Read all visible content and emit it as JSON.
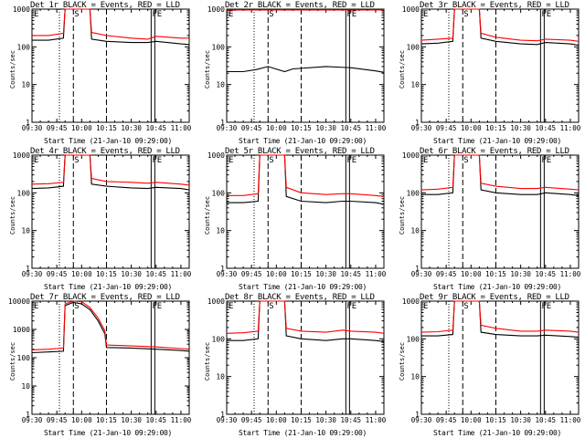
{
  "x_axis_label": "Start Time (21-Jan-10 09:29:00)",
  "y_axis_label": "Counts/sec",
  "event_markers": [
    "E",
    "S",
    "FE"
  ],
  "colors": {
    "events": "#000000",
    "lld": "#ff0000"
  },
  "panels": [
    {
      "title": "Det 1r BLACK = Events, RED = LLD"
    },
    {
      "title": "Det 2r BLACK = Events, RED = LLD"
    },
    {
      "title": "Det 3r BLACK = Events, RED = LLD"
    },
    {
      "title": "Det 4r BLACK = Events, RED = LLD"
    },
    {
      "title": "Det 5r BLACK = Events, RED = LLD"
    },
    {
      "title": "Det 6r BLACK = Events, RED = LLD"
    },
    {
      "title": "Det 7r BLACK = Events, RED = LLD"
    },
    {
      "title": "Det 8r BLACK = Events, RED = LLD"
    },
    {
      "title": "Det 9r BLACK = Events, RED = LLD"
    }
  ],
  "chart_data": [
    {
      "type": "line",
      "title": "Det 1r BLACK = Events, RED = LLD",
      "xlabel": "Start Time (21-Jan-10 09:29:00)",
      "ylabel": "Counts/sec",
      "xlim": [
        "09:30",
        "11:05"
      ],
      "ylim": [
        1,
        1000
      ],
      "yscale": "log",
      "x_tick_labels": [
        "09:30",
        "09:45",
        "10:00",
        "10:15",
        "10:30",
        "10:45",
        "11:00"
      ],
      "y_tick_labels": [
        "1",
        "10",
        "100",
        "1000"
      ],
      "markers": {
        "E": "09:30",
        "S": "09:55",
        "FE": "10:42"
      },
      "x": [
        "09:30",
        "09:40",
        "09:49",
        "09:50",
        "09:55",
        "10:05",
        "10:06",
        "10:15",
        "10:30",
        "10:40",
        "10:45",
        "11:00",
        "11:05"
      ],
      "series": [
        {
          "name": "Events",
          "values": [
            150,
            150,
            170,
            1000,
            1000,
            1000,
            160,
            140,
            130,
            130,
            140,
            120,
            115
          ]
        },
        {
          "name": "LLD",
          "values": [
            200,
            200,
            230,
            1000,
            1000,
            1000,
            240,
            200,
            170,
            160,
            190,
            170,
            170
          ]
        }
      ]
    },
    {
      "type": "line",
      "title": "Det 2r BLACK = Events, RED = LLD",
      "xlabel": "Start Time (21-Jan-10 09:29:00)",
      "ylabel": "Counts/sec",
      "xlim": [
        "09:30",
        "11:05"
      ],
      "ylim": [
        1,
        1000
      ],
      "yscale": "log",
      "x_tick_labels": [
        "09:30",
        "09:45",
        "10:00",
        "10:15",
        "10:30",
        "10:45",
        "11:00"
      ],
      "y_tick_labels": [
        "1",
        "10",
        "100",
        "1000"
      ],
      "markers": {
        "E": "09:30",
        "S": "09:55",
        "FE": "10:42"
      },
      "x": [
        "09:30",
        "09:40",
        "09:48",
        "09:55",
        "10:05",
        "10:10",
        "10:30",
        "10:45",
        "11:00",
        "11:05"
      ],
      "series": [
        {
          "name": "Events",
          "values": [
            22,
            22,
            25,
            30,
            22,
            26,
            30,
            28,
            23,
            21
          ]
        },
        {
          "name": "LLD",
          "values": [
            950,
            950,
            950,
            950,
            950,
            950,
            950,
            950,
            950,
            950
          ]
        }
      ]
    },
    {
      "type": "line",
      "title": "Det 3r BLACK = Events, RED = LLD",
      "xlabel": "Start Time (21-Jan-10 09:29:00)",
      "ylabel": "Counts/sec",
      "xlim": [
        "09:30",
        "11:05"
      ],
      "ylim": [
        1,
        1000
      ],
      "yscale": "log",
      "x_tick_labels": [
        "09:30",
        "09:45",
        "10:00",
        "10:15",
        "10:30",
        "10:45",
        "11:00"
      ],
      "y_tick_labels": [
        "1",
        "10",
        "100",
        "1000"
      ],
      "markers": {
        "E": "09:30",
        "S": "09:55",
        "FE": "10:42"
      },
      "x": [
        "09:30",
        "09:40",
        "09:49",
        "09:50",
        "09:55",
        "10:05",
        "10:06",
        "10:15",
        "10:30",
        "10:40",
        "10:45",
        "11:00",
        "11:05"
      ],
      "series": [
        {
          "name": "Events",
          "values": [
            120,
            125,
            140,
            1000,
            1000,
            1000,
            170,
            140,
            120,
            115,
            130,
            120,
            110
          ]
        },
        {
          "name": "LLD",
          "values": [
            150,
            160,
            170,
            1000,
            1000,
            1000,
            230,
            180,
            150,
            145,
            160,
            150,
            140
          ]
        }
      ]
    },
    {
      "type": "line",
      "title": "Det 4r BLACK = Events, RED = LLD",
      "xlabel": "Start Time (21-Jan-10 09:29:00)",
      "ylabel": "Counts/sec",
      "xlim": [
        "09:30",
        "11:05"
      ],
      "ylim": [
        1,
        1000
      ],
      "yscale": "log",
      "x_tick_labels": [
        "09:30",
        "09:45",
        "10:00",
        "10:15",
        "10:30",
        "10:45",
        "11:00"
      ],
      "y_tick_labels": [
        "1",
        "10",
        "100",
        "1000"
      ],
      "markers": {
        "E": "09:30",
        "S": "09:55",
        "FE": "10:42"
      },
      "x": [
        "09:30",
        "09:40",
        "09:49",
        "09:50",
        "09:55",
        "10:05",
        "10:06",
        "10:15",
        "10:30",
        "10:40",
        "10:45",
        "11:00",
        "11:05"
      ],
      "series": [
        {
          "name": "Events",
          "values": [
            130,
            135,
            150,
            1000,
            1000,
            1000,
            170,
            150,
            135,
            130,
            140,
            130,
            120
          ]
        },
        {
          "name": "LLD",
          "values": [
            170,
            175,
            190,
            1000,
            1000,
            1000,
            240,
            200,
            190,
            180,
            190,
            170,
            160
          ]
        }
      ]
    },
    {
      "type": "line",
      "title": "Det 5r BLACK = Events, RED = LLD",
      "xlabel": "Start Time (21-Jan-10 09:29:00)",
      "ylabel": "Counts/sec",
      "xlim": [
        "09:30",
        "11:05"
      ],
      "ylim": [
        1,
        1000
      ],
      "yscale": "log",
      "x_tick_labels": [
        "09:30",
        "09:45",
        "10:00",
        "10:15",
        "10:30",
        "10:45",
        "11:00"
      ],
      "y_tick_labels": [
        "1",
        "10",
        "100",
        "1000"
      ],
      "markers": {
        "E": "09:30",
        "S": "09:55",
        "FE": "10:42"
      },
      "x": [
        "09:30",
        "09:40",
        "09:49",
        "09:50",
        "09:55",
        "10:05",
        "10:06",
        "10:15",
        "10:30",
        "10:40",
        "10:45",
        "11:00",
        "11:05"
      ],
      "series": [
        {
          "name": "Events",
          "values": [
            55,
            55,
            60,
            1000,
            1000,
            1000,
            80,
            60,
            55,
            60,
            60,
            55,
            50
          ]
        },
        {
          "name": "LLD",
          "values": [
            85,
            85,
            95,
            1000,
            1000,
            1000,
            140,
            100,
            90,
            95,
            95,
            85,
            80
          ]
        }
      ]
    },
    {
      "type": "line",
      "title": "Det 6r BLACK = Events, RED = LLD",
      "xlabel": "Start Time (21-Jan-10 09:29:00)",
      "ylabel": "Counts/sec",
      "xlim": [
        "09:30",
        "11:05"
      ],
      "ylim": [
        1,
        1000
      ],
      "yscale": "log",
      "x_tick_labels": [
        "09:30",
        "09:45",
        "10:00",
        "10:15",
        "10:30",
        "10:45",
        "11:00"
      ],
      "y_tick_labels": [
        "1",
        "10",
        "100",
        "1000"
      ],
      "markers": {
        "E": "09:30",
        "S": "09:55",
        "FE": "10:42"
      },
      "x": [
        "09:30",
        "09:40",
        "09:49",
        "09:50",
        "09:55",
        "10:05",
        "10:06",
        "10:15",
        "10:30",
        "10:40",
        "10:45",
        "11:00",
        "11:05"
      ],
      "series": [
        {
          "name": "Events",
          "values": [
            90,
            90,
            100,
            1000,
            1000,
            1000,
            120,
            100,
            90,
            90,
            100,
            90,
            85
          ]
        },
        {
          "name": "LLD",
          "values": [
            120,
            125,
            140,
            1000,
            1000,
            1000,
            180,
            150,
            130,
            130,
            140,
            125,
            120
          ]
        }
      ]
    },
    {
      "type": "line",
      "title": "Det 7r BLACK = Events, RED = LLD",
      "xlabel": "Start Time (21-Jan-10 09:29:00)",
      "ylabel": "Counts/sec",
      "xlim": [
        "09:30",
        "11:05"
      ],
      "ylim": [
        1,
        10000
      ],
      "yscale": "log",
      "x_tick_labels": [
        "09:30",
        "09:45",
        "10:00",
        "10:15",
        "10:30",
        "10:45",
        "11:00"
      ],
      "y_tick_labels": [
        "1",
        "10",
        "100",
        "1000",
        "10000"
      ],
      "markers": {
        "E": "09:30",
        "S": "09:55",
        "FE": "10:42"
      },
      "x": [
        "09:30",
        "09:40",
        "09:49",
        "09:50",
        "09:55",
        "10:00",
        "10:05",
        "10:10",
        "10:14",
        "10:15",
        "10:30",
        "10:45",
        "11:00",
        "11:05"
      ],
      "series": [
        {
          "name": "Events",
          "values": [
            150,
            160,
            170,
            7000,
            9000,
            8000,
            5000,
            2000,
            700,
            230,
            220,
            200,
            180,
            170
          ]
        },
        {
          "name": "LLD",
          "values": [
            190,
            200,
            220,
            8000,
            10000,
            9500,
            6000,
            2500,
            900,
            280,
            260,
            240,
            210,
            200
          ]
        }
      ]
    },
    {
      "type": "line",
      "title": "Det 8r BLACK = Events, RED = LLD",
      "xlabel": "Start Time (21-Jan-10 09:29:00)",
      "ylabel": "Counts/sec",
      "xlim": [
        "09:30",
        "11:05"
      ],
      "ylim": [
        1,
        1000
      ],
      "yscale": "log",
      "x_tick_labels": [
        "09:30",
        "09:45",
        "10:00",
        "10:15",
        "10:30",
        "10:45",
        "11:00"
      ],
      "y_tick_labels": [
        "1",
        "10",
        "100",
        "1000"
      ],
      "markers": {
        "E": "09:30",
        "S": "09:55",
        "FE": "10:42"
      },
      "x": [
        "09:30",
        "09:40",
        "09:49",
        "09:50",
        "09:55",
        "10:05",
        "10:06",
        "10:15",
        "10:30",
        "10:40",
        "10:45",
        "11:00",
        "11:05"
      ],
      "series": [
        {
          "name": "Events",
          "values": [
            90,
            90,
            100,
            1000,
            1000,
            1000,
            120,
            100,
            90,
            100,
            100,
            90,
            85
          ]
        },
        {
          "name": "LLD",
          "values": [
            140,
            145,
            160,
            1000,
            1000,
            1000,
            190,
            160,
            150,
            170,
            160,
            150,
            140
          ]
        }
      ]
    },
    {
      "type": "line",
      "title": "Det 9r BLACK = Events, RED = LLD",
      "xlabel": "Start Time (21-Jan-10 09:29:00)",
      "ylabel": "Counts/sec",
      "xlim": [
        "09:30",
        "11:05"
      ],
      "ylim": [
        1,
        1000
      ],
      "yscale": "log",
      "x_tick_labels": [
        "09:30",
        "09:45",
        "10:00",
        "10:15",
        "10:30",
        "10:45",
        "11:00"
      ],
      "y_tick_labels": [
        "1",
        "10",
        "100",
        "1000"
      ],
      "markers": {
        "E": "09:30",
        "S": "09:55",
        "FE": "10:42"
      },
      "x": [
        "09:30",
        "09:40",
        "09:49",
        "09:50",
        "09:55",
        "10:05",
        "10:06",
        "10:15",
        "10:30",
        "10:40",
        "10:45",
        "11:00",
        "11:05"
      ],
      "series": [
        {
          "name": "Events",
          "values": [
            120,
            120,
            130,
            1000,
            1000,
            1000,
            150,
            130,
            120,
            120,
            125,
            115,
            110
          ]
        },
        {
          "name": "LLD",
          "values": [
            150,
            155,
            170,
            1000,
            1000,
            1000,
            230,
            190,
            160,
            160,
            170,
            160,
            150
          ]
        }
      ]
    }
  ]
}
